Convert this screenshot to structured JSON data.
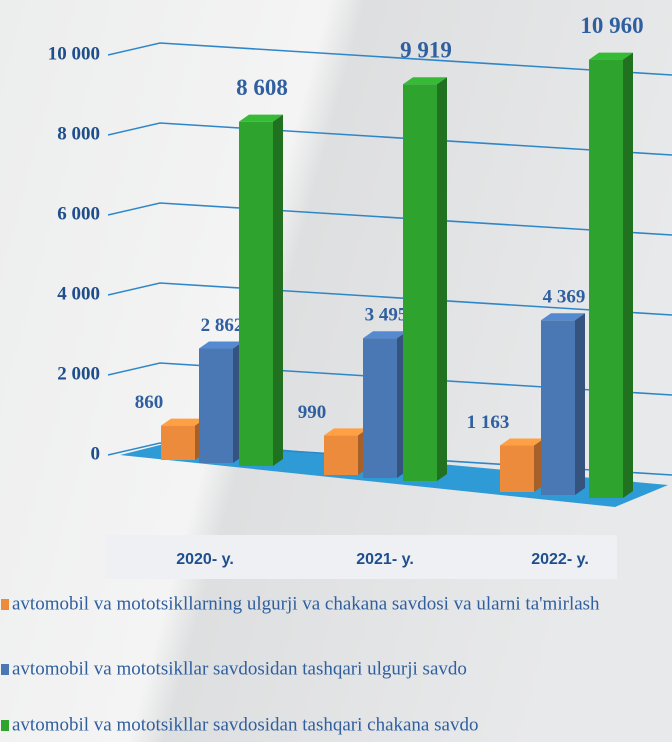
{
  "chart_data": {
    "type": "bar3d",
    "categories": [
      "2020- y.",
      "2021- y.",
      "2022- y."
    ],
    "series": [
      {
        "name": "avtomobil va mototsikllarning ulgurji va chakana savdosi va ularni ta'mirlash",
        "color": "#ed8b3c",
        "values": [
          860,
          990,
          1163
        ],
        "value_labels": [
          "860",
          "990",
          "1 163"
        ]
      },
      {
        "name": "avtomobil va mototsikllar savdosidan tashqari ulgurji savdo",
        "color": "#4a78b5",
        "values": [
          2862,
          3495,
          4369
        ],
        "value_labels": [
          "2 862",
          "3 495",
          "4 369"
        ]
      },
      {
        "name": "avtomobil va mototsikllar savdosidan tashqari chakana savdo",
        "color": "#2ea32e",
        "values": [
          8608,
          9919,
          10960
        ],
        "value_labels": [
          "8 608",
          "9 919",
          "10 960"
        ]
      }
    ],
    "ylim": [
      0,
      10000
    ],
    "yticks": [
      0,
      {
        "value": 2000,
        "label": "2 000"
      },
      {
        "value": 4000,
        "label": "4 000"
      },
      {
        "value": 6000,
        "label": "6 000"
      },
      {
        "value": 8000,
        "label": "8 000"
      },
      {
        "value": 10000,
        "label": "10 000"
      }
    ],
    "grid": true
  }
}
